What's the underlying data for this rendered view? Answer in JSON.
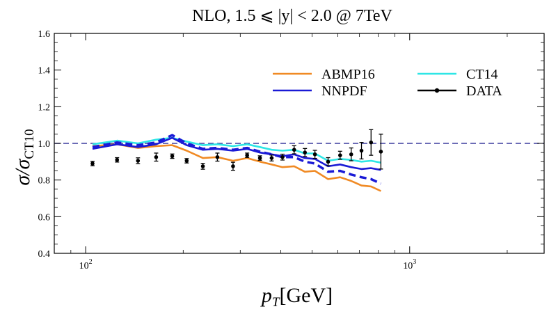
{
  "chart_data": {
    "type": "line",
    "title": "NLO, 1.5 ⩽ |y| < 2.0 @ 7TeV",
    "xlabel_main": "p",
    "xlabel_sub": "T",
    "xlabel_unit": "[GeV]",
    "ylabel_main": "σ/σ",
    "ylabel_sub": "CT10",
    "xscale": "log",
    "xlim": [
      80,
      2600
    ],
    "ylim": [
      0.4,
      1.6
    ],
    "x_ticks": [
      {
        "value": 100,
        "base": "10",
        "exp": "2"
      },
      {
        "value": 1000,
        "base": "10",
        "exp": "3"
      }
    ],
    "y_ticks": [
      {
        "value": 0.4,
        "label": "0.4"
      },
      {
        "value": 0.6,
        "label": "0.6"
      },
      {
        "value": 0.8,
        "label": "0.8"
      },
      {
        "value": 1.0,
        "label": "1.0"
      },
      {
        "value": 1.2,
        "label": "1.2"
      },
      {
        "value": 1.4,
        "label": "1.4"
      },
      {
        "value": 1.6,
        "label": "1.6"
      }
    ],
    "reference_line": 1.0,
    "legend_position": "top-right",
    "x": [
      105,
      125,
      145,
      165,
      185,
      205,
      230,
      255,
      285,
      315,
      345,
      375,
      405,
      440,
      475,
      510,
      560,
      610,
      660,
      710,
      760,
      815
    ],
    "series": [
      {
        "name": "ABMP16",
        "color": "#f08a24",
        "style": "solid",
        "values": [
          0.985,
          0.995,
          0.975,
          0.985,
          0.99,
          0.96,
          0.92,
          0.925,
          0.905,
          0.92,
          0.9,
          0.885,
          0.87,
          0.875,
          0.845,
          0.85,
          0.805,
          0.815,
          0.795,
          0.77,
          0.765,
          0.74
        ]
      },
      {
        "name": "CT14",
        "color": "#2ee6e6",
        "style": "solid",
        "values": [
          0.995,
          1.015,
          1.0,
          1.02,
          1.03,
          1.01,
          0.99,
          0.995,
          0.985,
          0.995,
          0.98,
          0.965,
          0.96,
          0.965,
          0.945,
          0.945,
          0.905,
          0.915,
          0.91,
          0.9,
          0.905,
          0.895
        ]
      },
      {
        "name": "NNPDF",
        "color": "#1a1ad6",
        "style": "solid",
        "values": [
          0.97,
          0.995,
          0.98,
          0.995,
          1.03,
          0.99,
          0.965,
          0.97,
          0.96,
          0.97,
          0.95,
          0.94,
          0.93,
          0.94,
          0.92,
          0.915,
          0.875,
          0.885,
          0.87,
          0.86,
          0.865,
          0.855
        ]
      },
      {
        "name": "NNPDF-dashed",
        "color": "#1a1ad6",
        "style": "dashed",
        "values": [
          0.98,
          1.005,
          0.99,
          1.005,
          1.045,
          1.0,
          0.97,
          0.975,
          0.965,
          0.975,
          0.955,
          0.94,
          0.925,
          0.925,
          0.9,
          0.89,
          0.845,
          0.85,
          0.83,
          0.815,
          0.805,
          0.78
        ]
      }
    ],
    "data_points": {
      "name": "DATA",
      "x": [
        105,
        125,
        145,
        165,
        185,
        205,
        230,
        255,
        285,
        315,
        345,
        375,
        405,
        440,
        475,
        510,
        560,
        610,
        660,
        710,
        760,
        815
      ],
      "y": [
        0.89,
        0.91,
        0.905,
        0.925,
        0.93,
        0.905,
        0.875,
        0.925,
        0.875,
        0.935,
        0.92,
        0.92,
        0.925,
        0.965,
        0.95,
        0.94,
        0.9,
        0.935,
        0.94,
        0.96,
        1.005,
        0.955
      ],
      "yerr": [
        0.012,
        0.012,
        0.016,
        0.022,
        0.012,
        0.012,
        0.016,
        0.022,
        0.022,
        0.012,
        0.012,
        0.016,
        0.016,
        0.022,
        0.022,
        0.022,
        0.022,
        0.022,
        0.035,
        0.045,
        0.07,
        0.095
      ]
    },
    "legend": [
      {
        "label": "ABMP16",
        "color": "#f08a24",
        "marker": false
      },
      {
        "label": "CT14",
        "color": "#2ee6e6",
        "marker": false
      },
      {
        "label": "NNPDF",
        "color": "#1a1ad6",
        "marker": false
      },
      {
        "label": "DATA",
        "color": "#000000",
        "marker": true
      }
    ]
  }
}
